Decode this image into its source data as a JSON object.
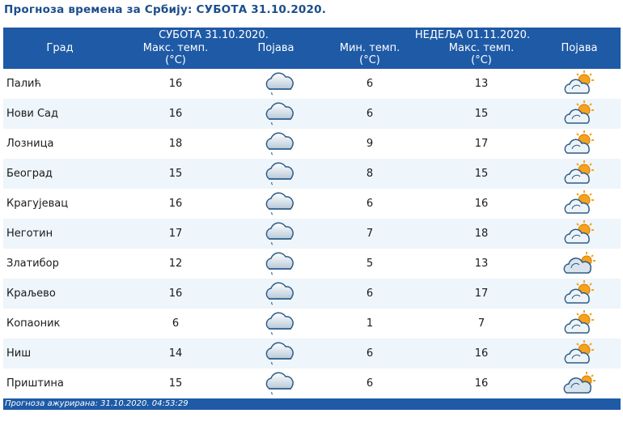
{
  "title": "Прогноза времена за Србију: СУБОТА  31.10.2020.",
  "header": {
    "city": "Град",
    "day1": "СУБОТА  31.10.2020.",
    "day1_max_l1": "Макс. темп.",
    "day1_max_l2": "(°C)",
    "day1_phen": "Појава",
    "day2": "НЕДЕЉА  01.11.2020.",
    "day2_min_l1": "Мин. темп.",
    "day2_min_l2": "(°C)",
    "day2_max_l1": "Макс. темп.",
    "day2_max_l2": "(°C)",
    "day2_phen": "Појава"
  },
  "rows": [
    {
      "city": "Палић",
      "max1": "16",
      "icon1": "cloud-drizzle-icon",
      "min2": "6",
      "max2": "13",
      "icon2": "partly-cloudy-icon"
    },
    {
      "city": "Нови Сад",
      "max1": "16",
      "icon1": "cloud-drizzle-icon",
      "min2": "6",
      "max2": "15",
      "icon2": "partly-cloudy-icon"
    },
    {
      "city": "Лозница",
      "max1": "18",
      "icon1": "cloud-drizzle-icon",
      "min2": "9",
      "max2": "17",
      "icon2": "partly-cloudy-icon"
    },
    {
      "city": "Београд",
      "max1": "15",
      "icon1": "cloud-drizzle-icon",
      "min2": "8",
      "max2": "15",
      "icon2": "partly-cloudy-icon"
    },
    {
      "city": "Крагујевац",
      "max1": "16",
      "icon1": "cloud-drizzle-icon",
      "min2": "6",
      "max2": "16",
      "icon2": "partly-cloudy-icon"
    },
    {
      "city": "Неготин",
      "max1": "17",
      "icon1": "cloud-drizzle-icon",
      "min2": "7",
      "max2": "18",
      "icon2": "partly-cloudy-icon"
    },
    {
      "city": "Златибор",
      "max1": "12",
      "icon1": "cloud-drizzle-icon",
      "min2": "5",
      "max2": "13",
      "icon2": "mostly-cloudy-icon"
    },
    {
      "city": "Краљево",
      "max1": "16",
      "icon1": "cloud-drizzle-icon",
      "min2": "6",
      "max2": "17",
      "icon2": "partly-cloudy-icon"
    },
    {
      "city": "Копаоник",
      "max1": "6",
      "icon1": "cloud-drizzle-icon",
      "min2": "1",
      "max2": "7",
      "icon2": "partly-cloudy-icon"
    },
    {
      "city": "Ниш",
      "max1": "14",
      "icon1": "cloud-drizzle-icon",
      "min2": "6",
      "max2": "16",
      "icon2": "partly-cloudy-icon"
    },
    {
      "city": "Приштина",
      "max1": "15",
      "icon1": "cloud-drizzle-icon",
      "min2": "6",
      "max2": "16",
      "icon2": "mostly-cloudy-icon"
    }
  ],
  "footer": "Прогноза ажурирана:  31.10.2020. 04:53:29",
  "colors": {
    "header_bg": "#1e5aa6",
    "title": "#1c4e8c",
    "row_alt": "#eef5fb"
  }
}
